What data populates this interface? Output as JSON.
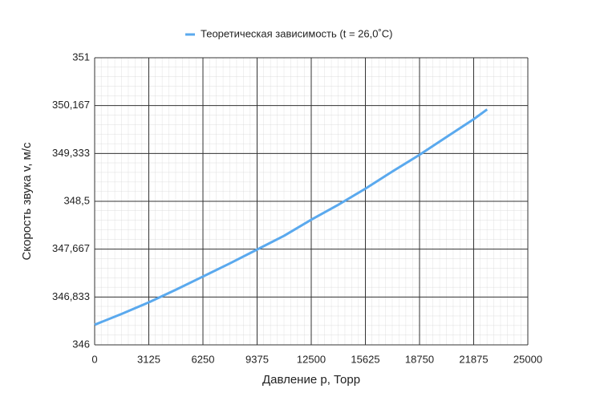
{
  "chart_data": {
    "type": "line",
    "legend_position": "top",
    "xlabel": "Давление p, Торр",
    "ylabel": "Скорость звука v, м/с",
    "x": [
      0,
      1562.5,
      3125,
      4687.5,
      6250,
      7812.5,
      9375,
      10937.5,
      12500,
      14062.5,
      15625,
      17187.5,
      18750,
      20312.5,
      21875,
      22650
    ],
    "series": [
      {
        "name": "Теоретическая зависимость (t = 26,0˚C)",
        "color": "#5aa9ee",
        "values": [
          346.35,
          346.54,
          346.74,
          346.96,
          347.19,
          347.42,
          347.66,
          347.9,
          348.18,
          348.44,
          348.72,
          349.02,
          349.31,
          349.62,
          349.93,
          350.1
        ]
      }
    ],
    "xlim": [
      0,
      25000
    ],
    "xticks": [
      0,
      3125,
      6250,
      9375,
      12500,
      15625,
      18750,
      21875,
      25000
    ],
    "ylim": [
      346,
      351
    ],
    "yticks": [
      346,
      {
        "value": 346.833,
        "label": "346,833"
      },
      {
        "value": 347.667,
        "label": "347,667"
      },
      {
        "value": 348.5,
        "label": "348,5"
      },
      {
        "value": 349.333,
        "label": "349,333"
      },
      {
        "value": 350.167,
        "label": "350,167"
      },
      351
    ],
    "grid": true
  }
}
